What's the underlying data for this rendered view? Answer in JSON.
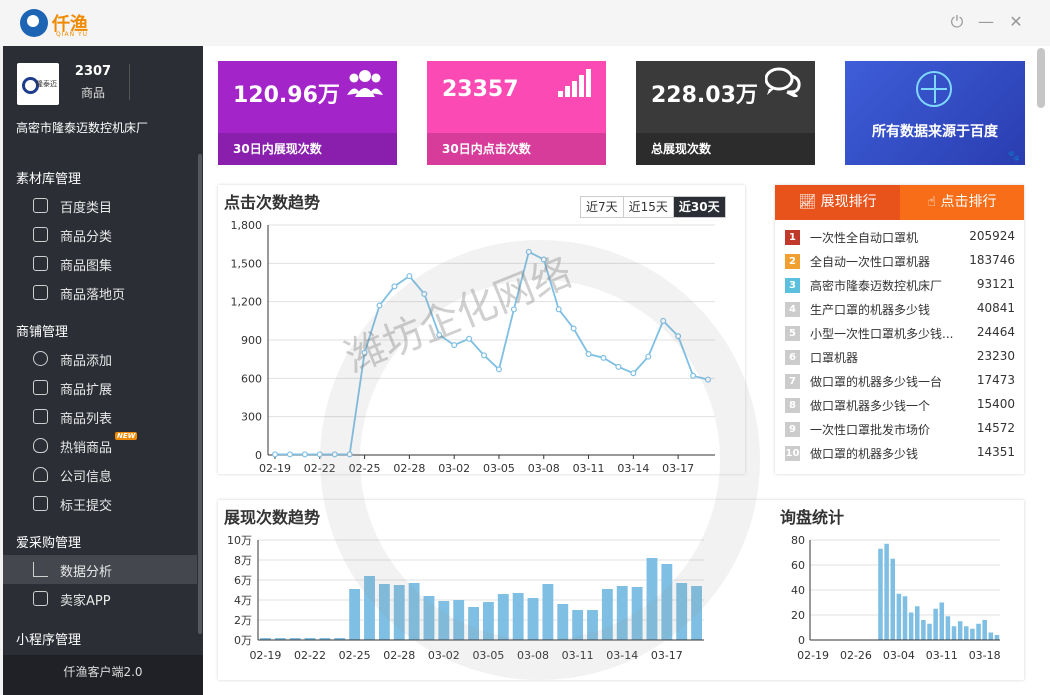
{
  "app": {
    "brand_name": "仟渔",
    "brand_sub": "QIAN YU"
  },
  "window_controls": {
    "power": "⏻",
    "minimize": "—",
    "close": "✕"
  },
  "sidebar": {
    "company_logo_text": "隆泰迈",
    "product_count": "2307",
    "product_count_label": "商品",
    "company_name": "高密市隆泰迈数控机床厂",
    "sections": [
      {
        "title": "素材库管理",
        "items": [
          "百度类目",
          "商品分类",
          "商品图集",
          "商品落地页"
        ]
      },
      {
        "title": "商铺管理",
        "items": [
          "商品添加",
          "商品扩展",
          "商品列表",
          "热销商品",
          "公司信息",
          "标王提交"
        ]
      },
      {
        "title": "爱采购管理",
        "items": [
          "数据分析",
          "卖家APP"
        ]
      },
      {
        "title": "小程序管理",
        "items": []
      }
    ],
    "new_badge": "NEW",
    "footer": "仟渔客户端2.0"
  },
  "stats": [
    {
      "value": "120.96万",
      "label": "30日内展现次数",
      "icon": "users-icon",
      "color": "#a324c9",
      "bar_color": "#8a1fae"
    },
    {
      "value": "23357",
      "label": "30日内点击次数",
      "icon": "signal-bars-icon",
      "color": "#fb4ab4",
      "bar_color": "#d83c9a"
    },
    {
      "value": "228.03万",
      "label": "总展现次数",
      "icon": "chat-bubbles-icon",
      "color": "#3a3a3a",
      "bar_color": "#2c2c2c"
    }
  ],
  "baidu_card": {
    "text": "所有数据来源于百度",
    "paw": "🐾"
  },
  "click_panel": {
    "title": "点击次数趋势",
    "ranges": [
      "近7天",
      "近15天",
      "近30天"
    ],
    "active_range": "近30天"
  },
  "rank_panel": {
    "tabs": [
      "展现排行",
      "点击排行"
    ],
    "active_tab": "展现排行",
    "colors": {
      "tab_active": "#e8531c",
      "tab_inactive": "#f86d17"
    },
    "rows": [
      {
        "n": "1",
        "keyword": "一次性全自动口罩机",
        "value": "205924",
        "color": "#c0392b"
      },
      {
        "n": "2",
        "keyword": "全自动一次性口罩机器",
        "value": "183746",
        "color": "#f0a030"
      },
      {
        "n": "3",
        "keyword": "高密市隆泰迈数控机床厂",
        "value": "93121",
        "color": "#5bc0de"
      },
      {
        "n": "4",
        "keyword": "生产口罩的机器多少钱",
        "value": "40841",
        "color": "#cccccc"
      },
      {
        "n": "5",
        "keyword": "小型一次性口罩机多少钱...",
        "value": "24464",
        "color": "#cccccc"
      },
      {
        "n": "6",
        "keyword": "口罩机器",
        "value": "23230",
        "color": "#cccccc"
      },
      {
        "n": "7",
        "keyword": "做口罩的机器多少钱一台",
        "value": "17473",
        "color": "#cccccc"
      },
      {
        "n": "8",
        "keyword": "做口罩机器多少钱一个",
        "value": "15400",
        "color": "#cccccc"
      },
      {
        "n": "9",
        "keyword": "一次性口罩批发市场价",
        "value": "14572",
        "color": "#cccccc"
      },
      {
        "n": "10",
        "keyword": "做口罩的机器多少钱",
        "value": "14351",
        "color": "#cccccc"
      }
    ]
  },
  "watermark": "潍坊企化网络",
  "chart_data": [
    {
      "type": "line",
      "title": "点击次数趋势",
      "x": [
        "02-19",
        "02-20",
        "02-21",
        "02-22",
        "02-23",
        "02-24",
        "02-25",
        "02-26",
        "02-27",
        "02-28",
        "02-29",
        "03-01",
        "03-02",
        "03-03",
        "03-04",
        "03-05",
        "03-06",
        "03-07",
        "03-08",
        "03-09",
        "03-10",
        "03-11",
        "03-12",
        "03-13",
        "03-14",
        "03-15",
        "03-16",
        "03-17",
        "03-18",
        "03-19"
      ],
      "x_ticks": [
        "02-19",
        "02-22",
        "02-25",
        "02-28",
        "03-02",
        "03-05",
        "03-08",
        "03-11",
        "03-14",
        "03-17"
      ],
      "values": [
        5,
        5,
        5,
        5,
        5,
        5,
        800,
        1170,
        1320,
        1400,
        1260,
        940,
        860,
        910,
        780,
        670,
        1140,
        1590,
        1530,
        1140,
        990,
        790,
        760,
        690,
        640,
        770,
        1050,
        930,
        620,
        590
      ],
      "y_ticks": [
        "0",
        "300",
        "600",
        "900",
        "1,200",
        "1,500",
        "1,800"
      ],
      "ylim": [
        0,
        1800
      ],
      "color": "#7fbfe3"
    },
    {
      "type": "bar",
      "title": "展现次数趋势",
      "x": [
        "02-19",
        "02-20",
        "02-21",
        "02-22",
        "02-23",
        "02-24",
        "02-25",
        "02-26",
        "02-27",
        "02-28",
        "02-29",
        "03-01",
        "03-02",
        "03-03",
        "03-04",
        "03-05",
        "03-06",
        "03-07",
        "03-08",
        "03-09",
        "03-10",
        "03-11",
        "03-12",
        "03-13",
        "03-14",
        "03-15",
        "03-16",
        "03-17",
        "03-18",
        "03-19"
      ],
      "x_ticks": [
        "02-19",
        "02-22",
        "02-25",
        "02-28",
        "03-02",
        "03-05",
        "03-08",
        "03-11",
        "03-14",
        "03-17"
      ],
      "values": [
        2000,
        2000,
        2000,
        2000,
        2000,
        2000,
        51000,
        64000,
        56000,
        55000,
        57000,
        44000,
        39000,
        40000,
        33000,
        38000,
        46000,
        47000,
        42000,
        56000,
        36000,
        30000,
        30000,
        51000,
        54000,
        53000,
        82000,
        76000,
        57000,
        54000
      ],
      "y_ticks": [
        "0万",
        "2万",
        "4万",
        "6万",
        "8万",
        "10万"
      ],
      "ylim": [
        0,
        100000
      ],
      "color": "#7fbfe3"
    },
    {
      "type": "bar",
      "title": "询盘统计",
      "values": [
        0,
        0,
        0,
        0,
        0,
        0,
        0,
        0,
        0,
        0,
        0,
        73,
        77,
        65,
        37,
        35,
        22,
        27,
        16,
        13,
        25,
        30,
        19,
        11,
        15,
        11,
        9,
        13,
        16,
        6,
        4
      ],
      "x_ticks": [
        "02-19",
        "02-26",
        "03-04",
        "03-11",
        "03-18"
      ],
      "y_ticks": [
        "0",
        "20",
        "40",
        "60",
        "80"
      ],
      "ylim": [
        0,
        80
      ],
      "color": "#7fbfe3"
    }
  ]
}
